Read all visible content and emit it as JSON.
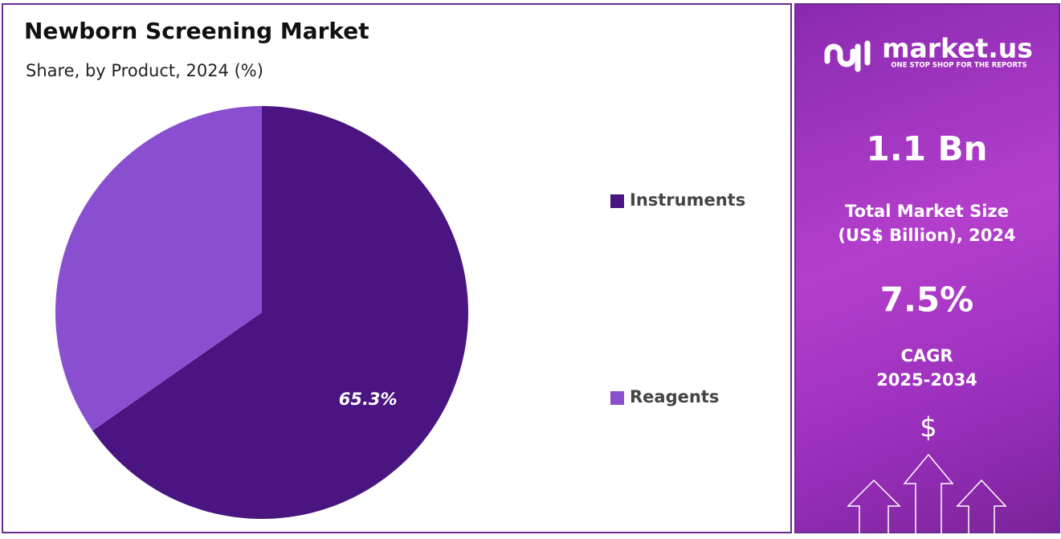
{
  "chart_data": {
    "type": "pie",
    "title": "Newborn Screening Market",
    "subtitle": "Share, by Product, 2024 (%)",
    "categories": [
      "Instruments",
      "Reagents"
    ],
    "values": [
      65.3,
      34.7
    ],
    "value_labels": [
      "65.3%",
      null
    ],
    "colors": [
      "#4a1580",
      "#8a4fd0"
    ],
    "legend": "right"
  },
  "sidebar": {
    "brand": "market.us",
    "tagline": "ONE STOP SHOP FOR THE REPORTS",
    "market_size": "1.1 Bn",
    "market_size_label_1": "Total Market Size",
    "market_size_label_2": "(US$ Billion), 2024",
    "cagr": "7.5%",
    "cagr_label": "CAGR",
    "cagr_period": "2025-2034",
    "currency_icon": "$"
  }
}
